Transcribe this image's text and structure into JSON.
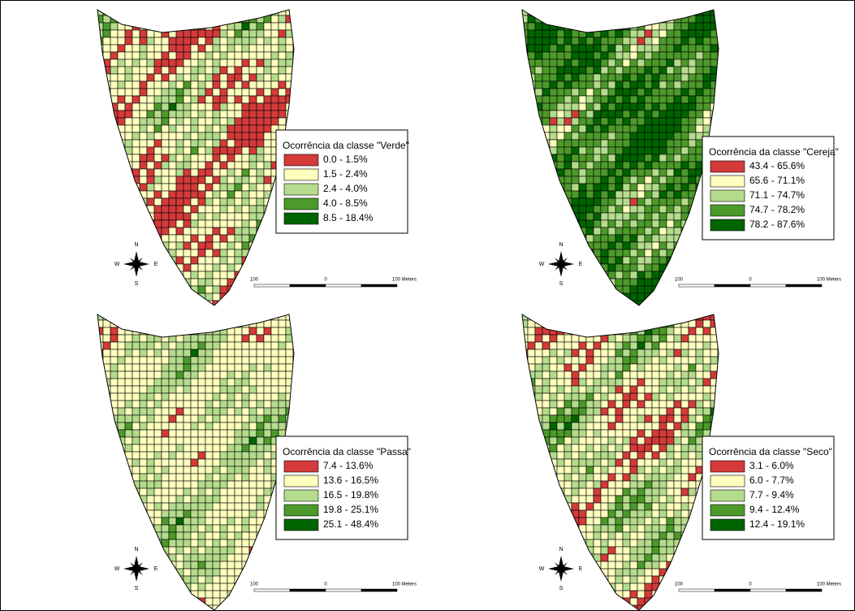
{
  "class_colors": [
    "#d43a3a",
    "#ffffbe",
    "#b4dc8c",
    "#4c9a2a",
    "#006400"
  ],
  "panels": [
    {
      "legend_title": "Ocorrência da classe \"Verde\"",
      "classes": [
        "0.0 - 1.5%",
        "1.5 - 2.4%",
        "2.4 - 4.0%",
        "4.0 - 8.5%",
        "8.5 - 18.4%"
      ]
    },
    {
      "legend_title": "Ocorrência da classe \"Cereja\"",
      "classes": [
        "43.4 - 65.6%",
        "65.6 - 71.1%",
        "71.1 - 74.7%",
        "74.7 - 78.2%",
        "78.2 - 87.6%"
      ]
    },
    {
      "legend_title": "Ocorrência da classe \"Passa\"",
      "classes": [
        "7.4 - 13.6%",
        "13.6 - 16.5%",
        "16.5 - 19.8%",
        "19.8 - 25.1%",
        "25.1 - 48.4%"
      ]
    },
    {
      "legend_title": "Ocorrência da classe \"Seco\"",
      "classes": [
        "3.1 - 6.0%",
        "6.0 - 7.7%",
        "7.7 - 9.4%",
        "9.4 - 12.4%",
        "12.4 - 19.1%"
      ]
    }
  ],
  "compass": {
    "n": "N",
    "s": "S",
    "w": "W",
    "e": "E"
  },
  "scale_bar": {
    "left": "100",
    "middle": "0",
    "right": "100 Meters"
  }
}
